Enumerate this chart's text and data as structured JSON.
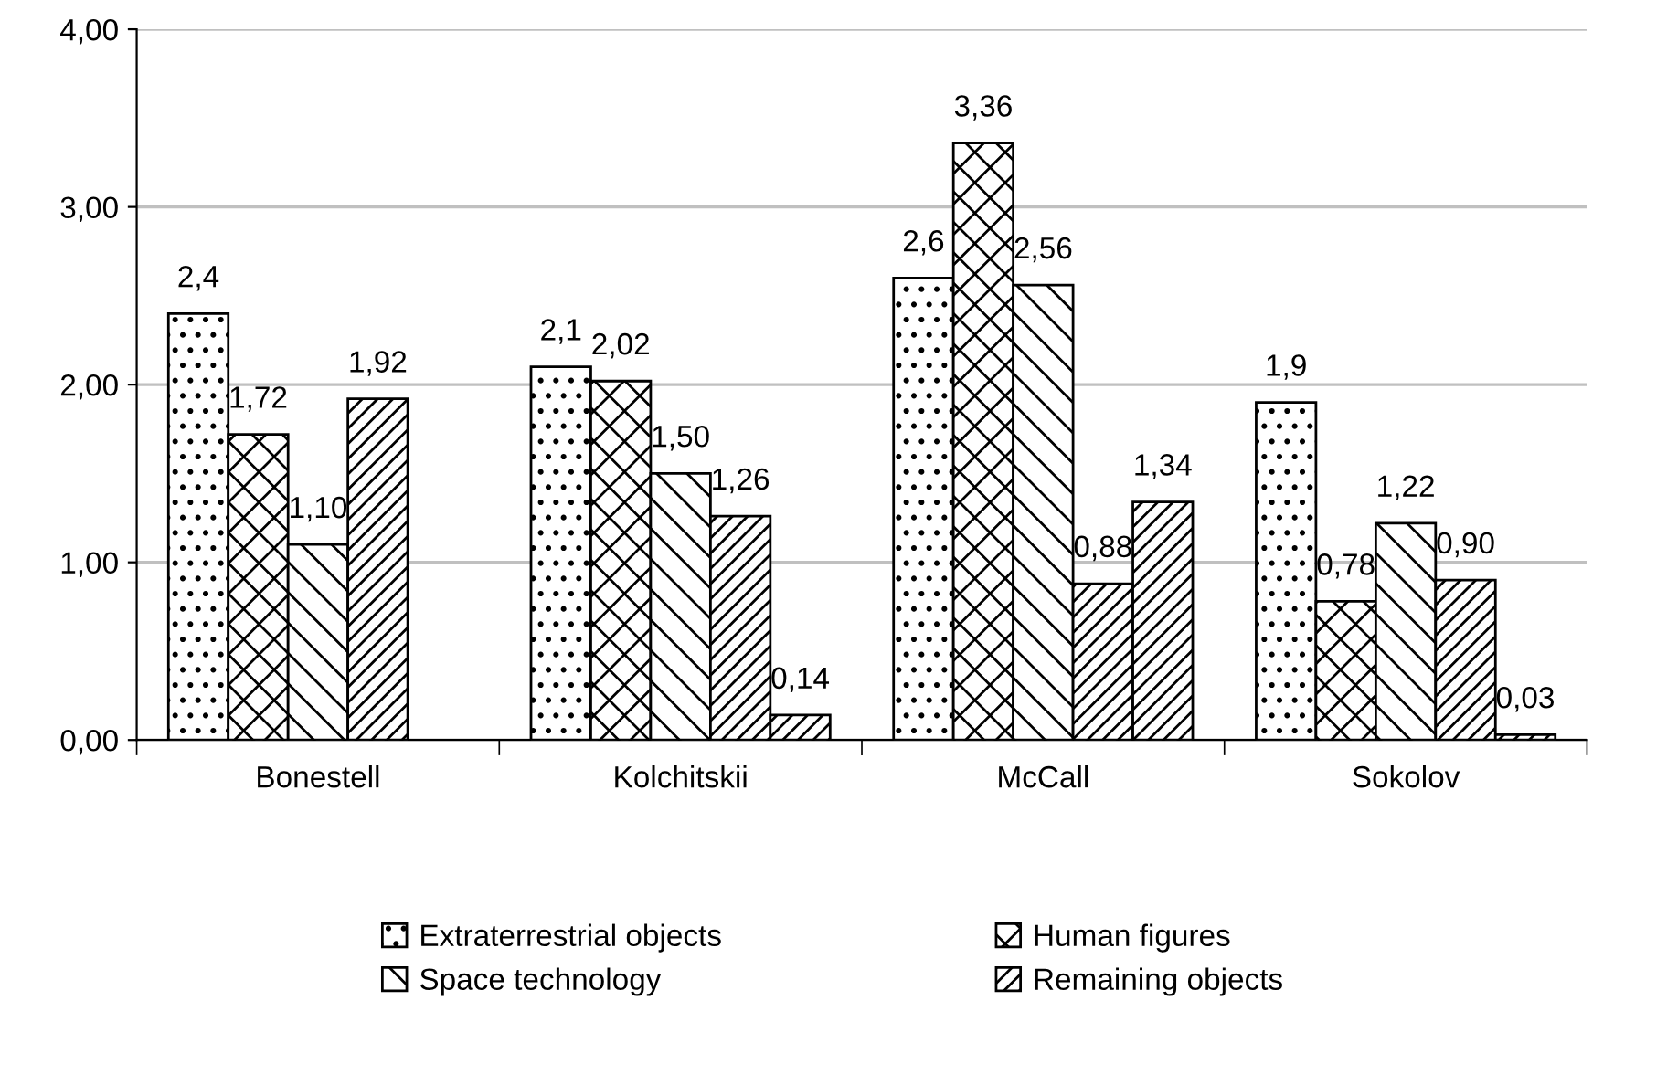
{
  "chart_data": {
    "type": "bar",
    "categories": [
      "Bonestell",
      "Kolchitskii",
      "McCall",
      "Sokolov"
    ],
    "series": [
      {
        "name": "Extraterrestrial objects",
        "color": "#000000",
        "values": [
          2.4,
          2.1,
          2.6,
          1.9
        ],
        "value_labels": [
          "2,4",
          "2,1",
          "2,6",
          "1,9"
        ]
      },
      {
        "name": "Human figures",
        "color": "#000000",
        "values": [
          1.72,
          2.02,
          3.36,
          0.78
        ],
        "value_labels": [
          "1,72",
          "2,02",
          "3,36",
          "0,78"
        ]
      },
      {
        "name": "Space technology",
        "color": "#000000",
        "values": [
          1.1,
          1.5,
          2.56,
          1.22
        ],
        "value_labels": [
          "1,10",
          "1,50",
          "2,56",
          "1,22"
        ]
      },
      {
        "name": "Remaining objects",
        "color": "#000000",
        "values": [
          1.92,
          1.26,
          0.88,
          0.9
        ],
        "value_labels": [
          "1,92",
          "1,26",
          "0,88",
          "0,90"
        ]
      },
      {
        "color": "#000000",
        "values": [
          null,
          0.14,
          1.34,
          0.03
        ],
        "value_labels": [
          null,
          "0,14",
          "1,34",
          "0,03"
        ]
      }
    ],
    "ylim": [
      0,
      4
    ],
    "yticks": [
      {
        "value": 0,
        "label": "0,00"
      },
      {
        "value": 1,
        "label": "1,00"
      },
      {
        "value": 2,
        "label": "2,00"
      },
      {
        "value": 3,
        "label": "3,00"
      },
      {
        "value": 4,
        "label": "4,00"
      }
    ],
    "grid": "y",
    "legend": "bottom"
  }
}
